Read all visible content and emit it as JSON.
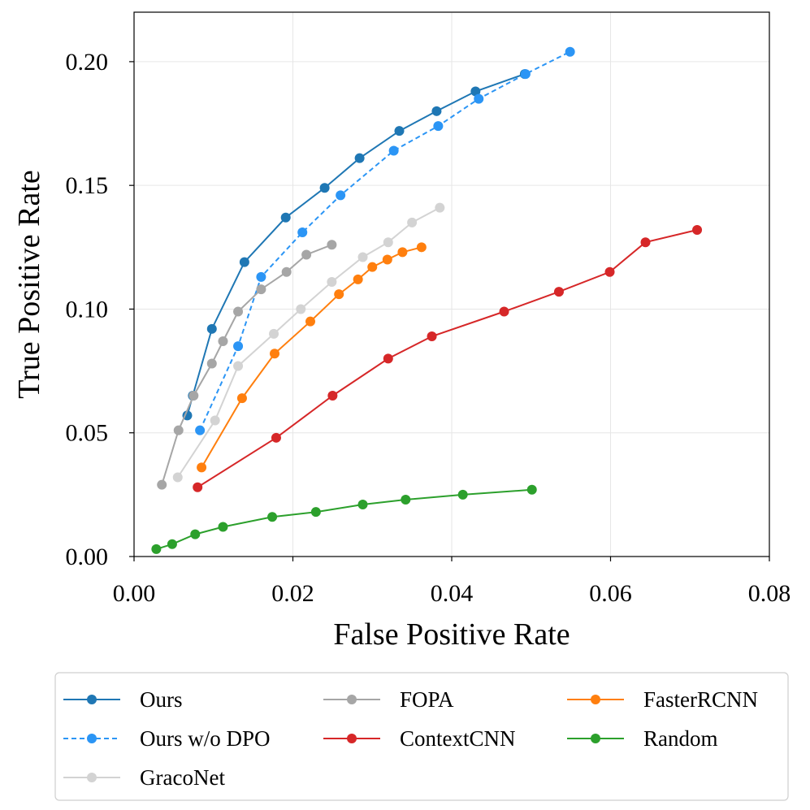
{
  "chart_data": {
    "type": "line",
    "title": "",
    "xlabel": "False Positive Rate",
    "ylabel": "True Positive Rate",
    "xlim": [
      0.0,
      0.08
    ],
    "ylim": [
      0.0,
      0.22
    ],
    "xticks": [
      0.0,
      0.02,
      0.04,
      0.06,
      0.08
    ],
    "yticks": [
      0.0,
      0.05,
      0.1,
      0.15,
      0.2
    ],
    "xtick_labels": [
      "0.00",
      "0.02",
      "0.04",
      "0.06",
      "0.08"
    ],
    "ytick_labels": [
      "0.00",
      "0.05",
      "0.10",
      "0.15",
      "0.20"
    ],
    "grid": true,
    "legend_position": "bottom-outside",
    "series": [
      {
        "name": "Ours",
        "color": "#1f77b4",
        "dashed": false,
        "x": [
          0.0067,
          0.0074,
          0.0098,
          0.0139,
          0.0191,
          0.024,
          0.0284,
          0.0334,
          0.0381,
          0.043,
          0.0492
        ],
        "y": [
          0.057,
          0.065,
          0.092,
          0.119,
          0.137,
          0.149,
          0.161,
          0.172,
          0.18,
          0.188,
          0.195
        ]
      },
      {
        "name": "Ours w/o DPO",
        "color": "#2b95f5",
        "dashed": true,
        "x": [
          0.0083,
          0.0131,
          0.016,
          0.0212,
          0.026,
          0.0327,
          0.0383,
          0.0434,
          0.0493,
          0.0549
        ],
        "y": [
          0.051,
          0.085,
          0.113,
          0.131,
          0.146,
          0.164,
          0.174,
          0.185,
          0.195,
          0.204
        ]
      },
      {
        "name": "GracoNet",
        "color": "#d3d3d3",
        "dashed": false,
        "x": [
          0.0055,
          0.0102,
          0.0131,
          0.0176,
          0.021,
          0.0249,
          0.0288,
          0.032,
          0.035,
          0.0385
        ],
        "y": [
          0.032,
          0.055,
          0.077,
          0.09,
          0.1,
          0.111,
          0.121,
          0.127,
          0.135,
          0.141
        ]
      },
      {
        "name": "FOPA",
        "color": "#a6a6a6",
        "dashed": false,
        "x": [
          0.0035,
          0.0056,
          0.0075,
          0.0098,
          0.0112,
          0.0131,
          0.016,
          0.0192,
          0.0217,
          0.0249
        ],
        "y": [
          0.029,
          0.051,
          0.065,
          0.078,
          0.087,
          0.099,
          0.108,
          0.115,
          0.122,
          0.126
        ]
      },
      {
        "name": "ContextCNN",
        "color": "#d62728",
        "dashed": false,
        "x": [
          0.008,
          0.0179,
          0.025,
          0.032,
          0.0375,
          0.0466,
          0.0535,
          0.0599,
          0.0644,
          0.0709
        ],
        "y": [
          0.028,
          0.048,
          0.065,
          0.08,
          0.089,
          0.099,
          0.107,
          0.115,
          0.127,
          0.132
        ]
      },
      {
        "name": "FasterRCNN",
        "color": "#ff7f0e",
        "dashed": false,
        "x": [
          0.0085,
          0.0136,
          0.0177,
          0.0222,
          0.0258,
          0.0282,
          0.03,
          0.0319,
          0.0338,
          0.0362
        ],
        "y": [
          0.036,
          0.064,
          0.082,
          0.095,
          0.106,
          0.112,
          0.117,
          0.12,
          0.123,
          0.125
        ]
      },
      {
        "name": "Random",
        "color": "#2ca02c",
        "dashed": false,
        "x": [
          0.0028,
          0.0048,
          0.0077,
          0.0112,
          0.0174,
          0.0229,
          0.0288,
          0.0342,
          0.0414,
          0.0501
        ],
        "y": [
          0.003,
          0.005,
          0.009,
          0.012,
          0.016,
          0.018,
          0.021,
          0.023,
          0.025,
          0.027
        ]
      }
    ],
    "legend_order": [
      "Ours",
      "FOPA",
      "FasterRCNN",
      "Ours w/o DPO",
      "ContextCNN",
      "Random",
      "GracoNet"
    ]
  }
}
